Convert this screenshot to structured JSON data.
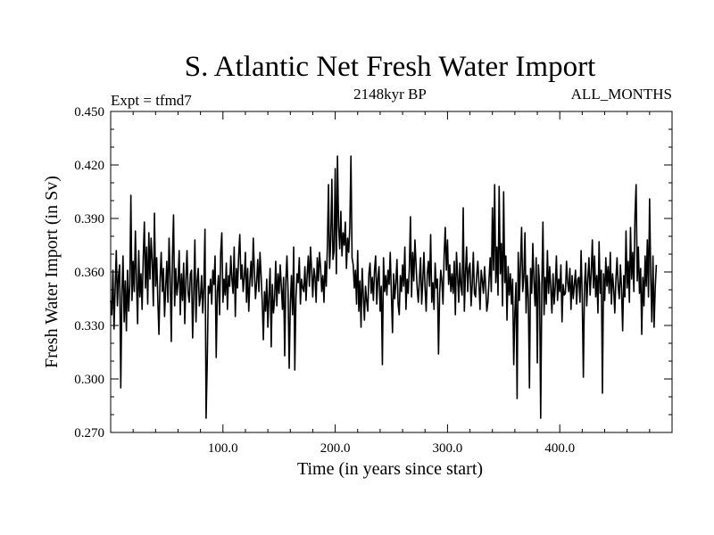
{
  "chart_data": {
    "type": "line",
    "title": "S. Atlantic Net Fresh Water Import",
    "subtitle_left": "Expt = tfmd7",
    "subtitle_center": "2148kyr BP",
    "subtitle_right": "ALL_MONTHS",
    "xlabel": "Time (in years since start)",
    "ylabel": "Fresh Water Import (in Sv)",
    "xlim": [
      0,
      500
    ],
    "ylim": [
      0.27,
      0.45
    ],
    "x_ticks": [
      100,
      200,
      300,
      400
    ],
    "x_tick_labels": [
      "100.0",
      "200.0",
      "300.0",
      "400.0"
    ],
    "y_ticks": [
      0.27,
      0.3,
      0.33,
      0.36,
      0.39,
      0.42,
      0.45
    ],
    "y_tick_labels": [
      "0.270",
      "0.300",
      "0.330",
      "0.360",
      "0.390",
      "0.420",
      "0.450"
    ],
    "grid": false,
    "series": [
      {
        "name": "Fresh Water Import",
        "color": "#000000",
        "x_start": 0,
        "x_step": 1,
        "values": [
          0.344,
          0.336,
          0.361,
          0.328,
          0.351,
          0.372,
          0.341,
          0.358,
          0.364,
          0.295,
          0.348,
          0.369,
          0.332,
          0.355,
          0.327,
          0.361,
          0.338,
          0.352,
          0.403,
          0.344,
          0.366,
          0.349,
          0.383,
          0.355,
          0.331,
          0.372,
          0.346,
          0.359,
          0.339,
          0.368,
          0.388,
          0.351,
          0.374,
          0.342,
          0.382,
          0.356,
          0.379,
          0.366,
          0.341,
          0.393,
          0.352,
          0.368,
          0.344,
          0.325,
          0.356,
          0.371,
          0.349,
          0.362,
          0.335,
          0.351,
          0.366,
          0.343,
          0.379,
          0.357,
          0.321,
          0.368,
          0.392,
          0.341,
          0.362,
          0.347,
          0.354,
          0.372,
          0.336,
          0.359,
          0.344,
          0.365,
          0.331,
          0.356,
          0.372,
          0.348,
          0.343,
          0.359,
          0.361,
          0.323,
          0.348,
          0.378,
          0.332,
          0.355,
          0.362,
          0.341,
          0.346,
          0.358,
          0.337,
          0.352,
          0.384,
          0.278,
          0.309,
          0.352,
          0.348,
          0.356,
          0.342,
          0.361,
          0.353,
          0.369,
          0.312,
          0.349,
          0.358,
          0.336,
          0.371,
          0.382,
          0.343,
          0.356,
          0.347,
          0.365,
          0.339,
          0.358,
          0.352,
          0.369,
          0.356,
          0.348,
          0.374,
          0.335,
          0.362,
          0.351,
          0.369,
          0.381,
          0.356,
          0.364,
          0.349,
          0.357,
          0.371,
          0.343,
          0.362,
          0.338,
          0.355,
          0.366,
          0.352,
          0.379,
          0.361,
          0.345,
          0.354,
          0.367,
          0.349,
          0.371,
          0.358,
          0.343,
          0.322,
          0.349,
          0.338,
          0.356,
          0.329,
          0.347,
          0.362,
          0.318,
          0.353,
          0.337,
          0.345,
          0.366,
          0.341,
          0.359,
          0.348,
          0.364,
          0.352,
          0.339,
          0.357,
          0.313,
          0.355,
          0.369,
          0.349,
          0.306,
          0.342,
          0.358,
          0.336,
          0.374,
          0.305,
          0.345,
          0.359,
          0.354,
          0.368,
          0.342,
          0.356,
          0.351,
          0.349,
          0.363,
          0.344,
          0.358,
          0.369,
          0.352,
          0.374,
          0.361,
          0.346,
          0.362,
          0.357,
          0.343,
          0.368,
          0.355,
          0.371,
          0.362,
          0.349,
          0.358,
          0.343,
          0.366,
          0.352,
          0.374,
          0.409,
          0.362,
          0.378,
          0.412,
          0.367,
          0.372,
          0.418,
          0.359,
          0.425,
          0.386,
          0.373,
          0.394,
          0.369,
          0.382,
          0.375,
          0.388,
          0.362,
          0.379,
          0.371,
          0.385,
          0.425,
          0.368,
          0.364,
          0.351,
          0.361,
          0.342,
          0.372,
          0.338,
          0.355,
          0.329,
          0.362,
          0.347,
          0.333,
          0.352,
          0.344,
          0.338,
          0.359,
          0.365,
          0.348,
          0.357,
          0.344,
          0.361,
          0.369,
          0.342,
          0.356,
          0.363,
          0.338,
          0.352,
          0.308,
          0.368,
          0.349,
          0.358,
          0.347,
          0.361,
          0.353,
          0.371,
          0.348,
          0.326,
          0.359,
          0.345,
          0.354,
          0.367,
          0.342,
          0.336,
          0.358,
          0.349,
          0.364,
          0.352,
          0.374,
          0.339,
          0.356,
          0.348,
          0.362,
          0.391,
          0.346,
          0.371,
          0.355,
          0.378,
          0.364,
          0.351,
          0.343,
          0.356,
          0.368,
          0.342,
          0.355,
          0.371,
          0.351,
          0.338,
          0.359,
          0.366,
          0.352,
          0.381,
          0.343,
          0.354,
          0.339,
          0.365,
          0.351,
          0.356,
          0.314,
          0.348,
          0.361,
          0.355,
          0.342,
          0.369,
          0.385,
          0.361,
          0.378,
          0.353,
          0.364,
          0.349,
          0.359,
          0.348,
          0.366,
          0.336,
          0.371,
          0.358,
          0.343,
          0.365,
          0.352,
          0.347,
          0.396,
          0.338,
          0.359,
          0.374,
          0.349,
          0.362,
          0.365,
          0.341,
          0.353,
          0.371,
          0.348,
          0.346,
          0.358,
          0.366,
          0.354,
          0.339,
          0.361,
          0.355,
          0.348,
          0.363,
          0.352,
          0.338,
          0.343,
          0.356,
          0.368,
          0.349,
          0.396,
          0.361,
          0.409,
          0.354,
          0.374,
          0.347,
          0.408,
          0.359,
          0.376,
          0.341,
          0.405,
          0.354,
          0.369,
          0.333,
          0.363,
          0.347,
          0.359,
          0.342,
          0.356,
          0.308,
          0.337,
          0.354,
          0.289,
          0.371,
          0.344,
          0.363,
          0.385,
          0.349,
          0.357,
          0.382,
          0.337,
          0.358,
          0.345,
          0.295,
          0.362,
          0.348,
          0.376,
          0.355,
          0.341,
          0.368,
          0.309,
          0.364,
          0.353,
          0.278,
          0.351,
          0.388,
          0.336,
          0.357,
          0.342,
          0.372,
          0.348,
          0.363,
          0.351,
          0.337,
          0.359,
          0.342,
          0.352,
          0.369,
          0.344,
          0.356,
          0.349,
          0.364,
          0.332,
          0.353,
          0.347,
          0.348,
          0.366,
          0.354,
          0.349,
          0.362,
          0.339,
          0.358,
          0.345,
          0.353,
          0.361,
          0.342,
          0.356,
          0.357,
          0.343,
          0.372,
          0.346,
          0.301,
          0.352,
          0.365,
          0.341,
          0.356,
          0.368,
          0.347,
          0.359,
          0.378,
          0.351,
          0.369,
          0.346,
          0.358,
          0.337,
          0.377,
          0.348,
          0.361,
          0.292,
          0.359,
          0.344,
          0.368,
          0.352,
          0.363,
          0.348,
          0.371,
          0.342,
          0.359,
          0.351,
          0.337,
          0.356,
          0.368,
          0.352,
          0.345,
          0.364,
          0.351,
          0.327,
          0.358,
          0.346,
          0.383,
          0.351,
          0.366,
          0.343,
          0.385,
          0.356,
          0.371,
          0.349,
          0.392,
          0.409,
          0.355,
          0.374,
          0.348,
          0.362,
          0.325,
          0.357,
          0.341,
          0.369,
          0.352,
          0.378,
          0.346,
          0.401,
          0.358,
          0.332,
          0.369,
          0.329,
          0.351,
          0.364
        ]
      }
    ]
  }
}
